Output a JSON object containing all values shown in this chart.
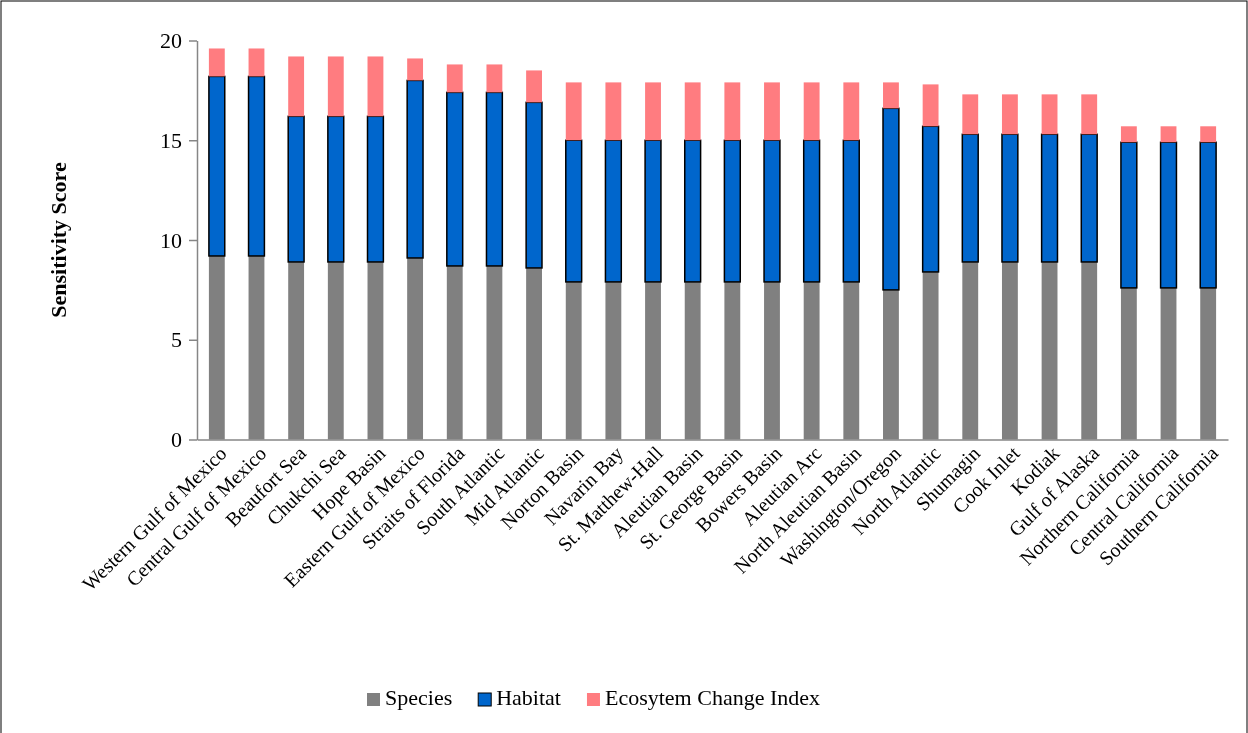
{
  "chart_data": {
    "type": "bar",
    "stacked": true,
    "ylabel": "Sensitivity Score",
    "categories": [
      "Western Gulf of Mexico",
      "Central Gulf of Mexico",
      "Beaufort Sea",
      "Chukchi Sea",
      "Hope Basin",
      "Eastern Gulf of Mexico",
      "Straits of Florida",
      "South Atlantic",
      "Mid Atlantic",
      "Norton Basin",
      "Navarin Bay",
      "St. Matthew-Hall",
      "Aleutian Basin",
      "St. George Basin",
      "Bowers Basin",
      "Aleutian Arc",
      "North Aleutian Basin",
      "Washington/Oregon",
      "North Atlantic",
      "Shumagin",
      "Cook Inlet",
      "Kodiak",
      "Gulf of Alaska",
      "Northern California",
      "Central California",
      "Southern California"
    ],
    "series": [
      {
        "name": "Species",
        "color": "#808080",
        "values": [
          9.2,
          9.2,
          8.9,
          8.9,
          8.9,
          9.1,
          8.7,
          8.7,
          8.6,
          7.9,
          7.9,
          7.9,
          7.9,
          7.9,
          7.9,
          7.9,
          7.9,
          7.5,
          8.4,
          8.9,
          8.9,
          8.9,
          8.9,
          7.6,
          7.6,
          7.6
        ]
      },
      {
        "name": "Habitat",
        "color": "#0066cc",
        "values": [
          9.0,
          9.0,
          7.3,
          7.3,
          7.3,
          8.9,
          8.7,
          8.7,
          8.3,
          7.1,
          7.1,
          7.1,
          7.1,
          7.1,
          7.1,
          7.1,
          7.1,
          9.1,
          7.3,
          6.4,
          6.4,
          6.4,
          6.4,
          7.3,
          7.3,
          7.3
        ]
      },
      {
        "name": "Ecosytem Change Index",
        "color": "#ff7c80",
        "values": [
          1.4,
          1.4,
          3.0,
          3.0,
          3.0,
          1.1,
          1.4,
          1.4,
          1.6,
          2.9,
          2.9,
          2.9,
          2.9,
          2.9,
          2.9,
          2.9,
          2.9,
          1.3,
          2.1,
          2.0,
          2.0,
          2.0,
          2.0,
          0.8,
          0.8,
          0.8
        ]
      }
    ],
    "ylim": [
      0,
      20
    ],
    "yticks": [
      0,
      5,
      10,
      15,
      20
    ],
    "grid": false,
    "legend": "bottom"
  }
}
